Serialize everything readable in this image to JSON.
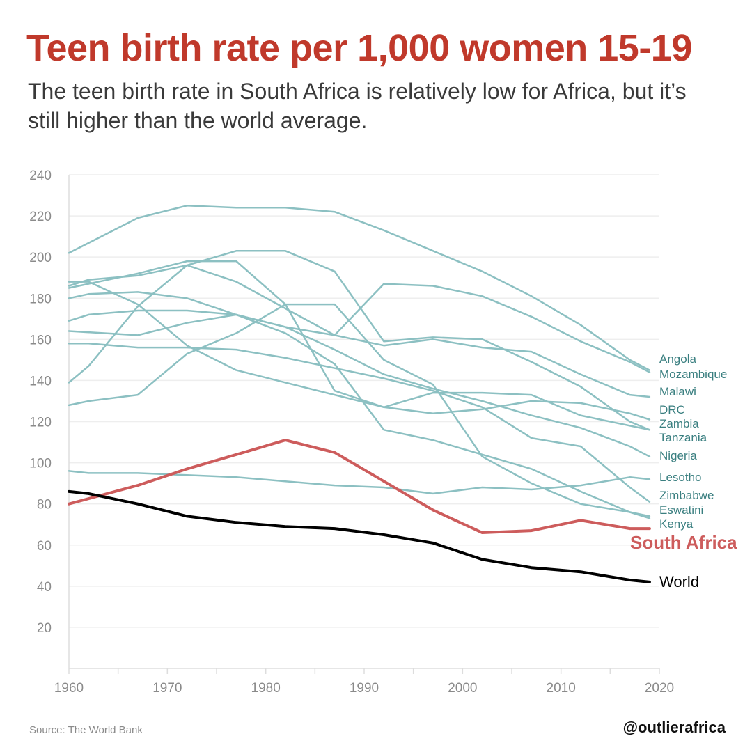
{
  "header": {
    "title": "Teen birth rate per 1,000 women 15-19",
    "subtitle": "The teen birth rate in South Africa is relatively low for Africa, but it’s still higher than the world average."
  },
  "footer": {
    "source": "Source: The World Bank",
    "handle": "@outlierafrica"
  },
  "colors": {
    "title": "#c0392b",
    "africa": "#8cc0c2",
    "africa_label": "#3a7f80",
    "south_africa": "#cd5c5c",
    "world": "#000000",
    "grid": "#eeeeee"
  },
  "chart_data": {
    "type": "line",
    "xlim": [
      1960,
      2020
    ],
    "ylim": [
      0,
      240
    ],
    "x_ticks": [
      "1960",
      "1970",
      "1980",
      "1990",
      "2000",
      "2010",
      "2020"
    ],
    "y_ticks": [
      "20",
      "40",
      "60",
      "80",
      "100",
      "120",
      "140",
      "160",
      "180",
      "200",
      "220",
      "240"
    ],
    "grid": "horizontal",
    "series": [
      {
        "name": "Angola",
        "group": "africa",
        "x": [
          1960,
          1967,
          1972,
          1977,
          1982,
          1987,
          1992,
          1997,
          2002,
          2007,
          2012,
          2017,
          2019
        ],
        "y": [
          202,
          219,
          225,
          224,
          224,
          222,
          213,
          203,
          193,
          181,
          167,
          150,
          145
        ]
      },
      {
        "name": "Mozambique",
        "group": "africa",
        "x": [
          1960,
          1962,
          1967,
          1972,
          1977,
          1982,
          1987,
          1992,
          1997,
          2002,
          2007,
          2012,
          2017,
          2019
        ],
        "y": [
          186,
          189,
          191,
          196,
          188,
          175,
          162,
          157,
          160,
          156,
          154,
          143,
          133,
          132
        ]
      },
      {
        "name": "Malawi",
        "group": "africa",
        "x": [
          1960,
          1962,
          1967,
          1972,
          1977,
          1982,
          1987,
          1992,
          1997,
          2002,
          2007,
          2012,
          2017,
          2019
        ],
        "y": [
          169,
          172,
          174,
          174,
          172,
          166,
          155,
          143,
          136,
          130,
          123,
          117,
          108,
          103
        ]
      },
      {
        "name": "DRC",
        "group": "africa",
        "x": [
          1960,
          1962,
          1967,
          1972,
          1977,
          1982,
          1987,
          1992,
          1997,
          2002,
          2007,
          2012,
          2017,
          2019
        ],
        "y": [
          180,
          182,
          183,
          180,
          172,
          166,
          162,
          187,
          186,
          181,
          171,
          159,
          149,
          144
        ]
      },
      {
        "name": "Zambia",
        "group": "africa",
        "x": [
          1960,
          1967,
          1972,
          1977,
          1982,
          1987,
          1992,
          1997,
          2002,
          2007,
          2012,
          2017,
          2019
        ],
        "y": [
          185,
          192,
          198,
          198,
          177,
          135,
          127,
          124,
          126,
          130,
          129,
          124,
          121
        ]
      },
      {
        "name": "Tanzania",
        "group": "africa",
        "x": [
          1960,
          1962,
          1967,
          1972,
          1977,
          1982,
          1987,
          1992,
          1997,
          2002,
          2007,
          2012,
          2017,
          2019
        ],
        "y": [
          188,
          188,
          177,
          157,
          145,
          139,
          133,
          127,
          134,
          134,
          133,
          123,
          118,
          116
        ]
      },
      {
        "name": "Nigeria",
        "group": "africa",
        "x": [
          1960,
          1967,
          1972,
          1977,
          1982,
          1987,
          1992,
          1997,
          2002,
          2007,
          2012,
          2017,
          2019
        ],
        "y": [
          164,
          162,
          168,
          172,
          163,
          148,
          116,
          111,
          104,
          97,
          86,
          76,
          73
        ]
      },
      {
        "name": "Lesotho",
        "group": "africa",
        "x": [
          1960,
          1962,
          1967,
          1972,
          1977,
          1982,
          1987,
          1992,
          1997,
          2002,
          2007,
          2012,
          2017,
          2019
        ],
        "y": [
          96,
          95,
          95,
          94,
          93,
          91,
          89,
          88,
          85,
          88,
          87,
          89,
          93,
          92
        ]
      },
      {
        "name": "Zimbabwe",
        "group": "africa",
        "x": [
          1960,
          1962,
          1967,
          1972,
          1977,
          1982,
          1987,
          1992,
          1997,
          2002,
          2007,
          2012,
          2017,
          2019
        ],
        "y": [
          139,
          147,
          176,
          196,
          203,
          203,
          193,
          159,
          161,
          160,
          149,
          137,
          120,
          116
        ]
      },
      {
        "name": "Eswatini",
        "group": "africa",
        "x": [
          1960,
          1962,
          1967,
          1972,
          1977,
          1982,
          1987,
          1992,
          1997,
          2002,
          2007,
          2012,
          2017,
          2019
        ],
        "y": [
          158,
          158,
          156,
          156,
          155,
          151,
          146,
          141,
          135,
          127,
          112,
          108,
          88,
          81
        ]
      },
      {
        "name": "Kenya",
        "group": "africa",
        "x": [
          1960,
          1962,
          1967,
          1972,
          1977,
          1982,
          1987,
          1992,
          1997,
          2002,
          2007,
          2012,
          2017,
          2019
        ],
        "y": [
          128,
          130,
          133,
          153,
          163,
          177,
          177,
          150,
          138,
          103,
          90,
          80,
          76,
          74
        ]
      },
      {
        "name": "South Africa",
        "group": "south_africa",
        "x": [
          1960,
          1967,
          1972,
          1977,
          1982,
          1987,
          1992,
          1997,
          2002,
          2007,
          2012,
          2017,
          2019
        ],
        "y": [
          80,
          89,
          97,
          104,
          111,
          105,
          91,
          77,
          66,
          67,
          72,
          68,
          68
        ]
      },
      {
        "name": "World",
        "group": "world",
        "x": [
          1960,
          1962,
          1967,
          1972,
          1977,
          1982,
          1987,
          1992,
          1997,
          2002,
          2007,
          2012,
          2017,
          2019
        ],
        "y": [
          86,
          85,
          80,
          74,
          71,
          69,
          68,
          65,
          61,
          53,
          49,
          47,
          43,
          42
        ]
      }
    ],
    "end_labels": [
      "Angola",
      "Mozambique",
      "Malawi",
      "DRC",
      "Zambia",
      "Tanzania",
      "Nigeria",
      "Lesotho",
      "Zimbabwe",
      "Eswatini",
      "Kenya",
      "South Africa",
      "World"
    ]
  }
}
